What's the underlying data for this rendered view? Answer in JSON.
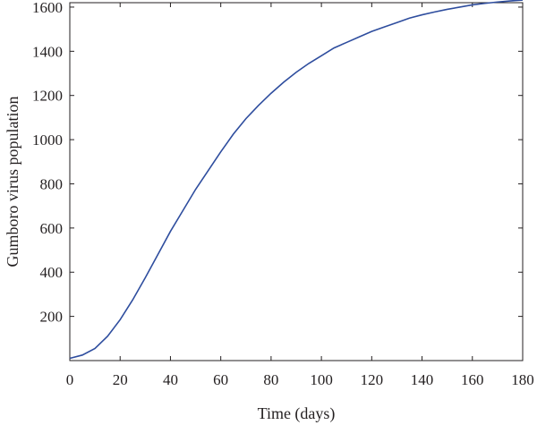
{
  "chart_data": {
    "type": "line",
    "title": "",
    "xlabel": "Time (days)",
    "ylabel": "Gumboro virus population",
    "xlim": [
      0,
      180
    ],
    "ylim": [
      0,
      1620
    ],
    "xticks": [
      0,
      20,
      40,
      60,
      80,
      100,
      120,
      140,
      160,
      180
    ],
    "yticks": [
      200,
      400,
      600,
      800,
      1000,
      1200,
      1400,
      1600
    ],
    "grid": false,
    "legend": "none",
    "series": [
      {
        "color": "#2e4d9e",
        "x": [
          0,
          5,
          10,
          15,
          20,
          25,
          30,
          35,
          40,
          45,
          50,
          55,
          60,
          65,
          70,
          75,
          80,
          85,
          90,
          95,
          100,
          105,
          110,
          115,
          120,
          125,
          130,
          135,
          140,
          145,
          150,
          155,
          160,
          165,
          170,
          175,
          180
        ],
        "values": [
          10,
          25,
          55,
          110,
          185,
          275,
          375,
          480,
          585,
          680,
          775,
          860,
          945,
          1025,
          1095,
          1155,
          1210,
          1260,
          1305,
          1345,
          1380,
          1415,
          1440,
          1465,
          1490,
          1510,
          1530,
          1550,
          1565,
          1578,
          1590,
          1600,
          1610,
          1617,
          1623,
          1628,
          1632
        ]
      }
    ]
  }
}
